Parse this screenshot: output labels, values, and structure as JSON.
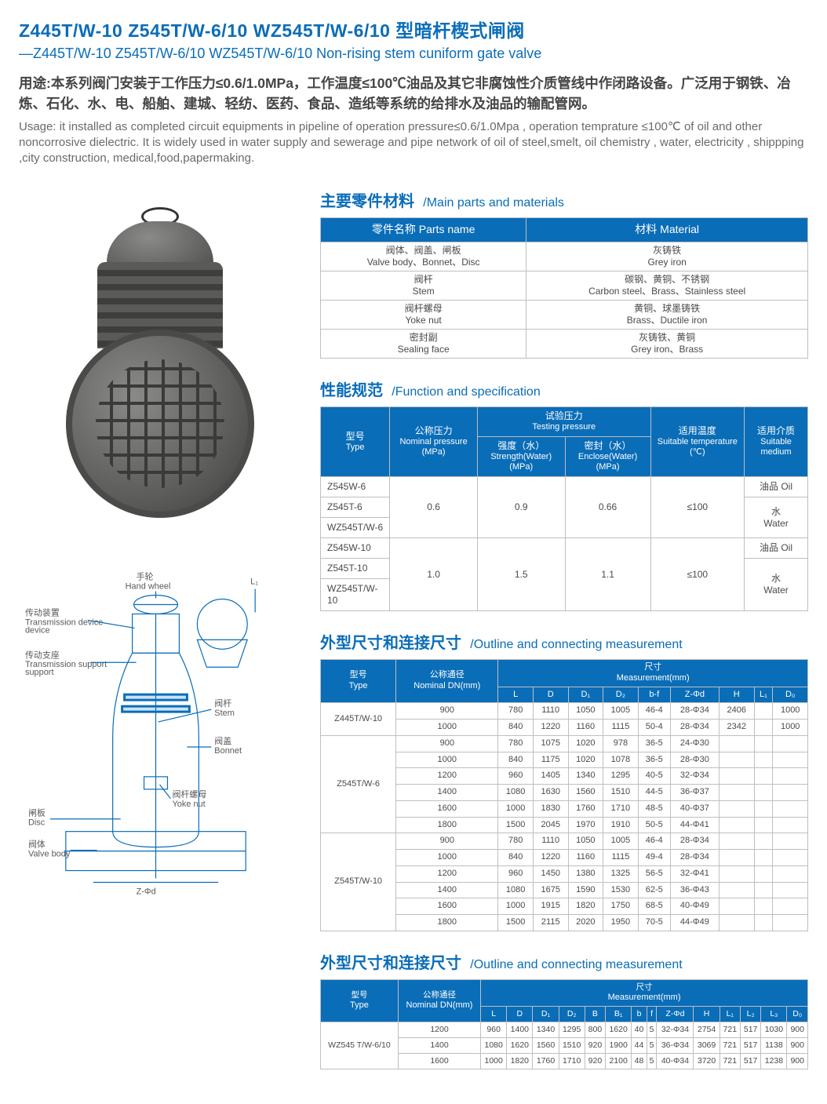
{
  "colors": {
    "primary": "#0a6db8",
    "text": "#595959",
    "heading_text": "#454545",
    "light_text": "#6a6a6a",
    "border": "#bfbfbf",
    "th_bg": "#0a6db8",
    "th_text": "#ffffff"
  },
  "title": {
    "cn": "Z445T/W-10  Z545T/W-6/10  WZ545T/W-6/10  型暗杆楔式闸阀",
    "en": "—Z445T/W-10  Z545T/W-6/10  WZ545T/W-6/10  Non-rising stem cuniform gate valve"
  },
  "usage": {
    "cn": "用途:本系列阀门安装于工作压力≤0.6/1.0MPa，工作温度≤100℃油品及其它非腐蚀性介质管线中作闭路设备。广泛用于钢铁、冶炼、石化、水、电、船舶、建城、轻纺、医药、食品、造纸等系统的给排水及油品的输配管网。",
    "en": "Usage: it installed as completed circuit equipments in pipeline of operation pressure≤0.6/1.0Mpa , operation  temprature ≤100℃ of oil and other noncorrosive dielectric. It is widely used in water supply and sewerage and pipe network of oil of steel,smelt, oil chemistry , water, electricity , shippping ,city construction, medical,food,papermaking."
  },
  "sections": {
    "parts": {
      "cn": "主要零件材料",
      "en": "/Main parts and materials"
    },
    "spec": {
      "cn": "性能规范",
      "en": "/Function and specification"
    },
    "dim": {
      "cn": "外型尺寸和连接尺寸",
      "en": "/Outline and connecting measurement"
    },
    "dim2": {
      "cn": "外型尺寸和连接尺寸",
      "en": "/Outline and connecting measurement"
    }
  },
  "parts_table": {
    "headers": {
      "name": "零件名称   Parts name",
      "material": "材料  Material"
    },
    "rows": [
      {
        "name_cn": "阀体、阀盖、闸板",
        "name_en": "Valve body、Bonnet、Disc",
        "mat_cn": "灰铸铁",
        "mat_en": "Grey iron"
      },
      {
        "name_cn": "阀杆",
        "name_en": "Stem",
        "mat_cn": "碳钢、黄铜、不锈钢",
        "mat_en": "Carbon steel、Brass、Stainless steel"
      },
      {
        "name_cn": "阀杆螺母",
        "name_en": "Yoke nut",
        "mat_cn": "黄铜、球墨铸铁",
        "mat_en": "Brass、Ductile iron"
      },
      {
        "name_cn": "密封副",
        "name_en": "Sealing face",
        "mat_cn": "灰铸铁、黄铜",
        "mat_en": "Grey iron、Brass"
      }
    ]
  },
  "spec_table": {
    "headers": {
      "type": {
        "cn": "型号",
        "en": "Type"
      },
      "nominal": {
        "cn": "公称压力",
        "en": "Nominal pressure (MPa)"
      },
      "testing": {
        "cn": "试验压力",
        "en": "Testing pressure"
      },
      "strength": {
        "cn": "强度（水）",
        "en": "Strength(Water) (MPa)"
      },
      "enclose": {
        "cn": "密封（水）",
        "en": "Enclose(Water) (MPa)"
      },
      "temp": {
        "cn": "适用温度",
        "en": "Suitable temperature (℃)"
      },
      "medium": {
        "cn": "适用介质",
        "en": "Suitable medium"
      }
    },
    "groups": [
      {
        "types": [
          "Z545W-6",
          "Z545T-6",
          "WZ545T/W-6"
        ],
        "nominal": "0.6",
        "strength": "0.9",
        "enclose": "0.66",
        "temp": "≤100",
        "media": [
          "油品 Oil",
          "水\nWater"
        ]
      },
      {
        "types": [
          "Z545W-10",
          "Z545T-10",
          "WZ545T/W-10"
        ],
        "nominal": "1.0",
        "strength": "1.5",
        "enclose": "1.1",
        "temp": "≤100",
        "media": [
          "油品 Oil",
          "水\nWater"
        ]
      }
    ]
  },
  "dim_table": {
    "headers": {
      "type": {
        "cn": "型号",
        "en": "Type"
      },
      "dn": {
        "cn": "公称通径",
        "en": "Nominal DN(mm)"
      },
      "meas": {
        "cn": "尺寸",
        "en": "Measurement(mm)"
      },
      "cols": [
        "L",
        "D",
        "D₁",
        "D₂",
        "b-f",
        "Z-Φd",
        "H",
        "L₁",
        "D₀"
      ]
    },
    "groups": [
      {
        "type": "Z445T/W-10",
        "rows": [
          [
            "900",
            "780",
            "1110",
            "1050",
            "1005",
            "46-4",
            "28-Φ34",
            "2406",
            "",
            "1000"
          ],
          [
            "1000",
            "840",
            "1220",
            "1160",
            "1115",
            "50-4",
            "28-Φ34",
            "2342",
            "",
            "1000"
          ]
        ]
      },
      {
        "type": "Z545T/W-6",
        "rows": [
          [
            "900",
            "780",
            "1075",
            "1020",
            "978",
            "36-5",
            "24-Φ30",
            "",
            "",
            ""
          ],
          [
            "1000",
            "840",
            "1175",
            "1020",
            "1078",
            "36-5",
            "28-Φ30",
            "",
            "",
            ""
          ],
          [
            "1200",
            "960",
            "1405",
            "1340",
            "1295",
            "40-5",
            "32-Φ34",
            "",
            "",
            ""
          ],
          [
            "1400",
            "1080",
            "1630",
            "1560",
            "1510",
            "44-5",
            "36-Φ37",
            "",
            "",
            ""
          ],
          [
            "1600",
            "1000",
            "1830",
            "1760",
            "1710",
            "48-5",
            "40-Φ37",
            "",
            "",
            ""
          ],
          [
            "1800",
            "1500",
            "2045",
            "1970",
            "1910",
            "50-5",
            "44-Φ41",
            "",
            "",
            ""
          ]
        ]
      },
      {
        "type": "Z545T/W-10",
        "rows": [
          [
            "900",
            "780",
            "1110",
            "1050",
            "1005",
            "46-4",
            "28-Φ34",
            "",
            "",
            ""
          ],
          [
            "1000",
            "840",
            "1220",
            "1160",
            "1115",
            "49-4",
            "28-Φ34",
            "",
            "",
            ""
          ],
          [
            "1200",
            "960",
            "1450",
            "1380",
            "1325",
            "56-5",
            "32-Φ41",
            "",
            "",
            ""
          ],
          [
            "1400",
            "1080",
            "1675",
            "1590",
            "1530",
            "62-5",
            "36-Φ43",
            "",
            "",
            ""
          ],
          [
            "1600",
            "1000",
            "1915",
            "1820",
            "1750",
            "68-5",
            "40-Φ49",
            "",
            "",
            ""
          ],
          [
            "1800",
            "1500",
            "2115",
            "2020",
            "1950",
            "70-5",
            "44-Φ49",
            "",
            "",
            ""
          ]
        ]
      }
    ]
  },
  "dim_table2": {
    "headers": {
      "type": {
        "cn": "型号",
        "en": "Type"
      },
      "dn": {
        "cn": "公称通径",
        "en": "Nominal DN(mm)"
      },
      "meas": {
        "cn": "尺寸",
        "en": "Measurement(mm)"
      },
      "cols": [
        "L",
        "D",
        "D₁",
        "D₂",
        "B",
        "B₁",
        "b",
        "f",
        "Z-Φd",
        "H",
        "L₁",
        "L₂",
        "L₃",
        "D₀"
      ]
    },
    "type_label": "WZ545 T/W-6/10",
    "rows": [
      [
        "1200",
        "960",
        "1400",
        "1340",
        "1295",
        "800",
        "1620",
        "40",
        "5",
        "32-Φ34",
        "2754",
        "721",
        "517",
        "1030",
        "900"
      ],
      [
        "1400",
        "1080",
        "1620",
        "1560",
        "1510",
        "920",
        "1900",
        "44",
        "5",
        "36-Φ34",
        "3069",
        "721",
        "517",
        "1138",
        "900"
      ],
      [
        "1600",
        "1000",
        "1820",
        "1760",
        "1710",
        "920",
        "2100",
        "48",
        "5",
        "40-Φ34",
        "3720",
        "721",
        "517",
        "1238",
        "900"
      ]
    ]
  },
  "diagram_labels": {
    "hand_wheel_cn": "手轮",
    "hand_wheel_en": "Hand wheel",
    "trans_dev_cn": "传动装置",
    "trans_dev_en": "Transmission device",
    "trans_sup_cn": "传动支座",
    "trans_sup_en": "Transmission support",
    "stem_cn": "阀杆",
    "stem_en": "Stem",
    "bonnet_cn": "阀盖",
    "bonnet_en": "Bonnet",
    "yoke_cn": "阀杆螺母",
    "yoke_en": "Yoke nut",
    "disc_cn": "闸板",
    "disc_en": "Disc",
    "body_cn": "阀体",
    "body_en": "Valve body"
  }
}
